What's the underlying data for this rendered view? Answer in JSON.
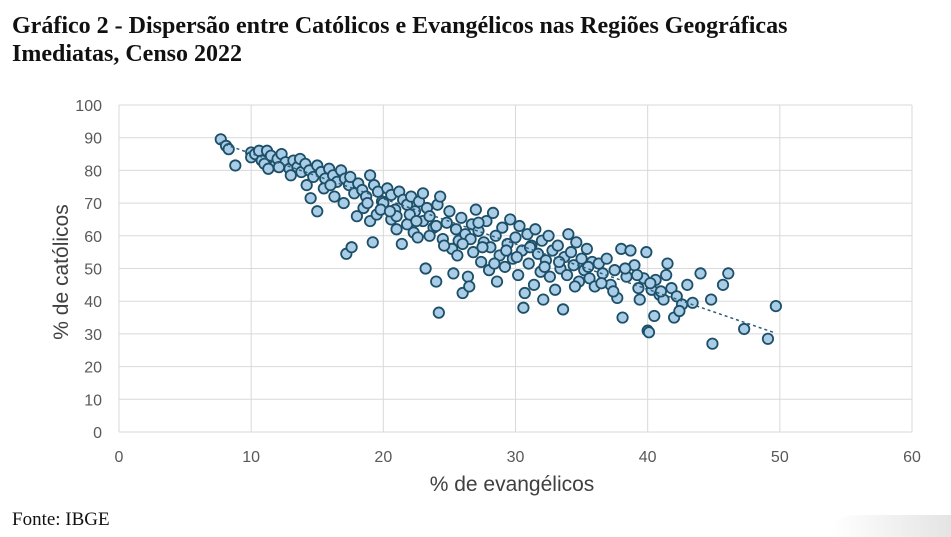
{
  "title_line1": "Gráfico 2 - Dispersão entre Católicos e Evangélicos nas Regiões Geográficas",
  "title_line2": "Imediatas, Censo 2022",
  "source": "Fonte: IBGE",
  "colors": {
    "marker_fill": "#a9cde6",
    "marker_stroke": "#1d4f68",
    "trendline": "#2a5f7c",
    "grid": "#d9d9d9",
    "text": "#595959"
  },
  "chart_data": {
    "type": "scatter",
    "title": "",
    "xlabel": "% de evangélicos",
    "ylabel": "% de católicos",
    "xlim": [
      0,
      60
    ],
    "ylim": [
      0,
      100
    ],
    "xticks": [
      0,
      10,
      20,
      30,
      40,
      50,
      60
    ],
    "yticks": [
      0,
      10,
      20,
      30,
      40,
      50,
      60,
      70,
      80,
      90,
      100
    ],
    "grid": true,
    "legend": "none",
    "trendline": {
      "type": "linear",
      "x": [
        7.6,
        49.5
      ],
      "y": [
        88.5,
        30.5
      ]
    },
    "points": [
      [
        7.7,
        89.5
      ],
      [
        8.1,
        87.5
      ],
      [
        8.3,
        86.5
      ],
      [
        8.8,
        81.5
      ],
      [
        10.0,
        85.5
      ],
      [
        10.0,
        84.0
      ],
      [
        10.3,
        85.0
      ],
      [
        10.6,
        86.0
      ],
      [
        10.8,
        83.0
      ],
      [
        11.0,
        82.0
      ],
      [
        11.2,
        86.0
      ],
      [
        11.5,
        84.5
      ],
      [
        11.8,
        81.5
      ],
      [
        12.0,
        83.5
      ],
      [
        12.3,
        85.0
      ],
      [
        12.6,
        82.5
      ],
      [
        12.9,
        80.5
      ],
      [
        13.2,
        83.0
      ],
      [
        13.5,
        81.0
      ],
      [
        13.8,
        79.5
      ],
      [
        11.3,
        80.5
      ],
      [
        12.1,
        81.0
      ],
      [
        13.0,
        78.5
      ],
      [
        13.7,
        83.5
      ],
      [
        14.1,
        82.0
      ],
      [
        14.4,
        80.0
      ],
      [
        14.7,
        78.0
      ],
      [
        15.0,
        81.5
      ],
      [
        15.3,
        79.5
      ],
      [
        15.6,
        77.5
      ],
      [
        15.9,
        80.5
      ],
      [
        16.2,
        78.5
      ],
      [
        16.5,
        76.5
      ],
      [
        16.8,
        80.0
      ],
      [
        17.1,
        77.5
      ],
      [
        17.4,
        75.5
      ],
      [
        14.2,
        75.5
      ],
      [
        14.5,
        71.5
      ],
      [
        15.0,
        67.5
      ],
      [
        16.3,
        72.0
      ],
      [
        17.0,
        70.0
      ],
      [
        17.2,
        54.5
      ],
      [
        17.6,
        56.5
      ],
      [
        17.8,
        73.0
      ],
      [
        18.1,
        76.0
      ],
      [
        18.4,
        74.0
      ],
      [
        18.7,
        72.0
      ],
      [
        19.0,
        78.5
      ],
      [
        19.3,
        75.5
      ],
      [
        19.6,
        73.5
      ],
      [
        19.9,
        70.5
      ],
      [
        18.0,
        66.0
      ],
      [
        18.5,
        68.5
      ],
      [
        19.0,
        64.5
      ],
      [
        19.2,
        58.0
      ],
      [
        19.5,
        66.5
      ],
      [
        20.0,
        70.0
      ],
      [
        20.3,
        74.5
      ],
      [
        20.6,
        72.5
      ],
      [
        20.9,
        68.0
      ],
      [
        21.2,
        73.5
      ],
      [
        21.5,
        71.0
      ],
      [
        21.8,
        69.5
      ],
      [
        22.1,
        72.0
      ],
      [
        22.4,
        67.5
      ],
      [
        22.7,
        70.5
      ],
      [
        23.0,
        73.0
      ],
      [
        23.3,
        68.5
      ],
      [
        20.6,
        65.0
      ],
      [
        21.0,
        62.0
      ],
      [
        21.4,
        57.5
      ],
      [
        21.8,
        63.5
      ],
      [
        22.3,
        61.0
      ],
      [
        22.6,
        59.5
      ],
      [
        23.0,
        64.5
      ],
      [
        23.2,
        50.0
      ],
      [
        23.5,
        66.0
      ],
      [
        23.8,
        62.5
      ],
      [
        24.0,
        46.0
      ],
      [
        24.1,
        69.5
      ],
      [
        24.3,
        72.0
      ],
      [
        24.2,
        36.5
      ],
      [
        24.5,
        59.0
      ],
      [
        24.8,
        64.0
      ],
      [
        25.0,
        67.5
      ],
      [
        25.2,
        56.0
      ],
      [
        25.3,
        48.5
      ],
      [
        25.5,
        62.0
      ],
      [
        25.7,
        58.5
      ],
      [
        25.9,
        65.5
      ],
      [
        26.0,
        42.5
      ],
      [
        26.2,
        60.5
      ],
      [
        26.4,
        47.5
      ],
      [
        26.5,
        44.5
      ],
      [
        26.7,
        63.5
      ],
      [
        26.8,
        55.0
      ],
      [
        27.0,
        68.0
      ],
      [
        27.2,
        61.5
      ],
      [
        27.4,
        52.0
      ],
      [
        27.6,
        58.0
      ],
      [
        27.8,
        64.5
      ],
      [
        28.0,
        49.5
      ],
      [
        28.1,
        56.5
      ],
      [
        28.3,
        67.0
      ],
      [
        28.5,
        60.0
      ],
      [
        28.6,
        46.0
      ],
      [
        28.8,
        54.0
      ],
      [
        29.0,
        62.5
      ],
      [
        29.2,
        50.5
      ],
      [
        29.4,
        57.5
      ],
      [
        29.6,
        65.0
      ],
      [
        29.8,
        53.0
      ],
      [
        30.0,
        59.5
      ],
      [
        30.2,
        48.0
      ],
      [
        30.3,
        63.0
      ],
      [
        30.5,
        55.5
      ],
      [
        30.6,
        38.0
      ],
      [
        30.7,
        42.5
      ],
      [
        30.9,
        60.5
      ],
      [
        31.0,
        51.5
      ],
      [
        31.2,
        57.0
      ],
      [
        31.4,
        45.0
      ],
      [
        31.5,
        62.0
      ],
      [
        31.7,
        54.5
      ],
      [
        31.9,
        49.0
      ],
      [
        32.0,
        58.5
      ],
      [
        32.1,
        40.5
      ],
      [
        32.3,
        52.5
      ],
      [
        32.5,
        60.0
      ],
      [
        32.6,
        47.5
      ],
      [
        32.8,
        55.5
      ],
      [
        33.0,
        43.5
      ],
      [
        33.2,
        57.0
      ],
      [
        33.4,
        50.0
      ],
      [
        33.6,
        37.5
      ],
      [
        33.7,
        53.5
      ],
      [
        33.9,
        48.0
      ],
      [
        34.0,
        60.5
      ],
      [
        34.2,
        55.0
      ],
      [
        34.4,
        51.0
      ],
      [
        34.6,
        58.0
      ],
      [
        34.8,
        46.0
      ],
      [
        35.0,
        53.0
      ],
      [
        35.2,
        49.5
      ],
      [
        35.4,
        56.0
      ],
      [
        35.6,
        47.0
      ],
      [
        35.8,
        52.0
      ],
      [
        36.0,
        44.5
      ],
      [
        36.3,
        51.5
      ],
      [
        36.6,
        48.5
      ],
      [
        36.9,
        53.0
      ],
      [
        37.2,
        45.0
      ],
      [
        37.5,
        49.5
      ],
      [
        37.7,
        41.0
      ],
      [
        38.0,
        56.0
      ],
      [
        38.1,
        35.0
      ],
      [
        38.4,
        47.5
      ],
      [
        38.7,
        55.5
      ],
      [
        39.0,
        51.0
      ],
      [
        39.3,
        44.0
      ],
      [
        39.4,
        40.5
      ],
      [
        39.7,
        47.0
      ],
      [
        39.9,
        55.0
      ],
      [
        40.0,
        31.0
      ],
      [
        40.1,
        30.5
      ],
      [
        40.3,
        43.5
      ],
      [
        40.5,
        35.5
      ],
      [
        40.6,
        46.5
      ],
      [
        40.9,
        42.0
      ],
      [
        41.2,
        40.5
      ],
      [
        41.4,
        48.0
      ],
      [
        41.5,
        51.5
      ],
      [
        41.8,
        44.0
      ],
      [
        42.0,
        35.0
      ],
      [
        42.2,
        41.5
      ],
      [
        42.6,
        39.0
      ],
      [
        43.0,
        45.0
      ],
      [
        43.4,
        39.5
      ],
      [
        44.0,
        48.5
      ],
      [
        44.8,
        40.5
      ],
      [
        44.9,
        27.0
      ],
      [
        45.7,
        45.0
      ],
      [
        46.1,
        48.5
      ],
      [
        47.3,
        31.5
      ],
      [
        49.1,
        28.5
      ],
      [
        49.7,
        38.5
      ],
      [
        21.0,
        66.0
      ],
      [
        22.0,
        66.5
      ],
      [
        23.5,
        60.0
      ],
      [
        24.6,
        57.0
      ],
      [
        25.6,
        54.0
      ],
      [
        26.6,
        59.0
      ],
      [
        27.5,
        56.5
      ],
      [
        28.4,
        51.5
      ],
      [
        29.3,
        55.5
      ],
      [
        30.1,
        53.5
      ],
      [
        31.1,
        56.5
      ],
      [
        32.2,
        50.5
      ],
      [
        33.3,
        52.0
      ],
      [
        34.5,
        44.5
      ],
      [
        35.5,
        50.5
      ],
      [
        36.5,
        45.5
      ],
      [
        37.4,
        43.0
      ],
      [
        38.3,
        50.0
      ],
      [
        39.2,
        48.0
      ],
      [
        40.2,
        45.5
      ],
      [
        41.0,
        43.0
      ],
      [
        42.4,
        37.0
      ],
      [
        15.5,
        74.5
      ],
      [
        16.0,
        75.5
      ],
      [
        17.5,
        78.0
      ],
      [
        18.8,
        70.0
      ],
      [
        19.8,
        68.0
      ],
      [
        20.5,
        67.5
      ],
      [
        22.5,
        64.5
      ],
      [
        24.0,
        63.0
      ],
      [
        26.0,
        57.5
      ],
      [
        27.2,
        64.0
      ]
    ]
  }
}
